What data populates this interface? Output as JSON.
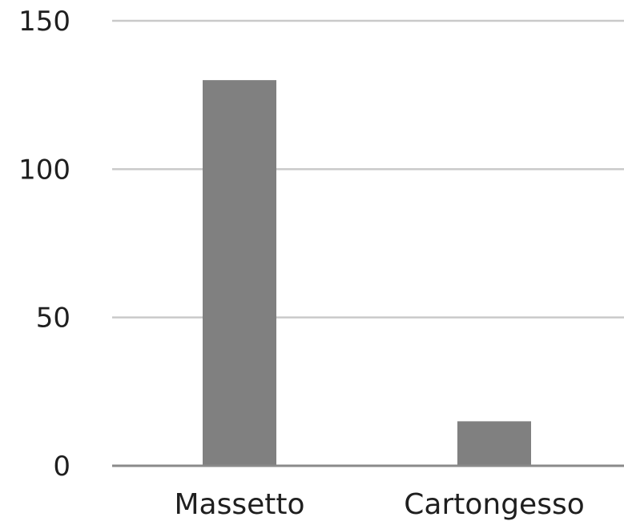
{
  "chart_data": {
    "type": "bar",
    "categories": [
      "Massetto",
      "Cartongesso"
    ],
    "values": [
      130,
      15
    ],
    "title": "",
    "xlabel": "",
    "ylabel": "",
    "ylim": [
      0,
      150
    ],
    "yticks": [
      "0",
      "50",
      "100",
      "150"
    ],
    "grid": true,
    "legend": "none",
    "bar_color": "#808080",
    "gridline_color": "#c9c9c9",
    "baseline_color": "#8a8a8a"
  }
}
